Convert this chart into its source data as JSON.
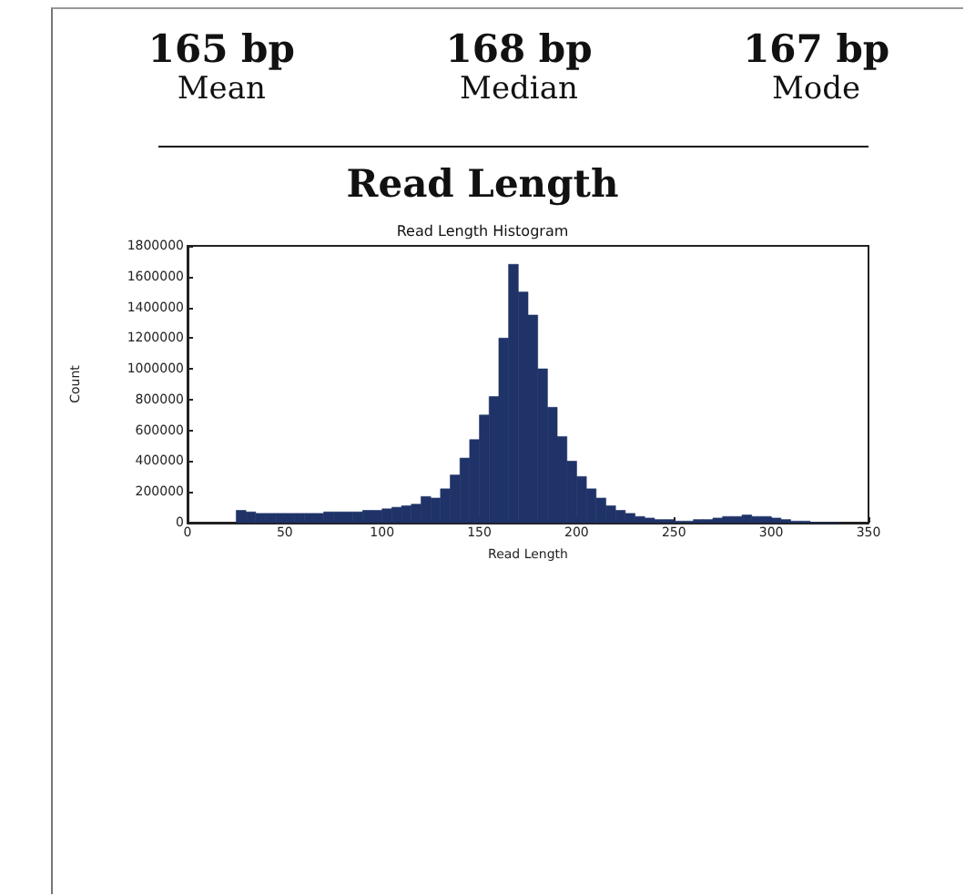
{
  "chart_data": {
    "type": "histogram",
    "title": "Read Length",
    "subtitle": "Read Length Histogram",
    "xlabel": "Read Length",
    "ylabel": "Count",
    "annotations": [
      "165 bp",
      "168 bp",
      "167 bp",
      "Mean",
      "Median",
      "Mode"
    ],
    "color": "#1f3368",
    "bins": [
      25,
      30,
      35,
      40,
      45,
      50,
      55,
      60,
      65,
      70,
      75,
      80,
      85,
      90,
      95,
      100,
      105,
      110,
      115,
      120,
      125,
      130,
      135,
      140,
      145,
      150,
      155,
      160,
      165,
      170,
      175,
      180,
      185,
      190,
      195,
      200,
      205,
      210,
      215,
      220,
      225,
      230,
      235,
      240,
      245,
      250,
      255,
      260,
      265,
      270,
      275,
      280,
      285,
      290,
      295,
      300,
      305,
      310,
      315,
      320,
      325,
      330,
      335
    ],
    "values": [
      80000,
      70000,
      60000,
      60000,
      60000,
      60000,
      60000,
      60000,
      60000,
      70000,
      70000,
      70000,
      70000,
      80000,
      80000,
      90000,
      100000,
      110000,
      120000,
      170000,
      160000,
      220000,
      310000,
      420000,
      540000,
      700000,
      820000,
      1200000,
      1680000,
      1500000,
      1350000,
      1000000,
      750000,
      560000,
      400000,
      300000,
      220000,
      160000,
      110000,
      80000,
      60000,
      40000,
      30000,
      20000,
      20000,
      10000,
      10000,
      20000,
      20000,
      30000,
      40000,
      40000,
      50000,
      40000,
      40000,
      30000,
      20000,
      10000,
      10000,
      0,
      0,
      0
    ],
    "xlim": [
      0,
      350
    ],
    "xticks": [
      0,
      50,
      100,
      150,
      200,
      250,
      300,
      350
    ],
    "ylim": [
      0,
      1800000
    ],
    "yticks": [
      0,
      200000,
      400000,
      600000,
      800000,
      1000000,
      1200000,
      1400000,
      1600000,
      1800000
    ],
    "grid": false
  }
}
